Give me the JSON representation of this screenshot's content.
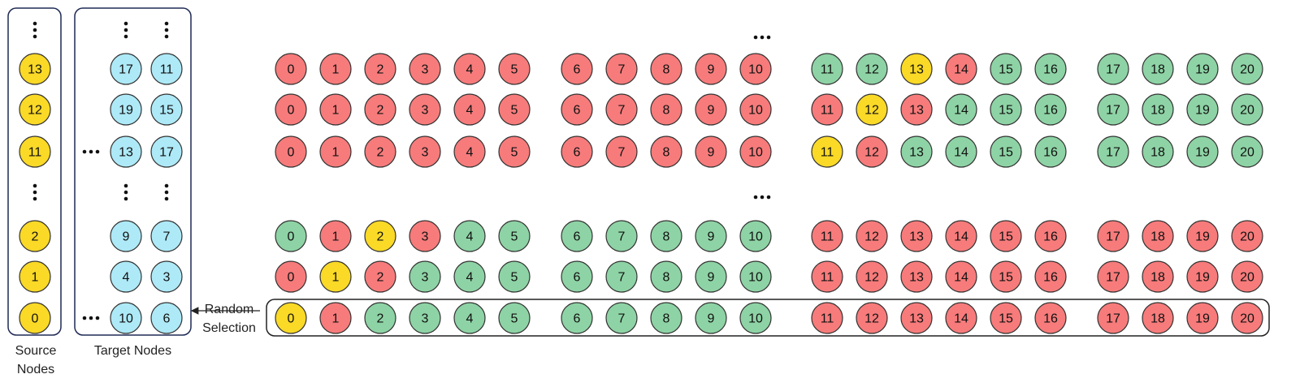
{
  "colors": {
    "red": "#f77b7b",
    "green": "#8ed3a5",
    "yellow": "#fad927",
    "cyan": "#aee9f7"
  },
  "source_nodes": {
    "caption": "Source Nodes",
    "nodes": [
      "13",
      "12",
      "11",
      "2",
      "1",
      "0"
    ],
    "color": "yellow"
  },
  "target_nodes": {
    "caption": "Target Nodes",
    "rows": [
      [
        "17",
        "11"
      ],
      [
        "19",
        "15"
      ],
      [
        "13",
        "17"
      ],
      [
        "9",
        "7"
      ],
      [
        "4",
        "3"
      ],
      [
        "10",
        "6"
      ]
    ],
    "color": "cyan"
  },
  "selection_label": "Random Selection",
  "grid": {
    "rows": [
      {
        "labels": [
          "0",
          "1",
          "2",
          "3",
          "4",
          "5",
          "6",
          "7",
          "8",
          "9",
          "10",
          "11",
          "12",
          "13",
          "14",
          "15",
          "16",
          "17",
          "18",
          "19",
          "20"
        ],
        "colors": [
          "red",
          "red",
          "red",
          "red",
          "red",
          "red",
          "red",
          "red",
          "red",
          "red",
          "red",
          "green",
          "green",
          "yellow",
          "red",
          "green",
          "green",
          "green",
          "green",
          "green",
          "green"
        ]
      },
      {
        "labels": [
          "0",
          "1",
          "2",
          "3",
          "4",
          "5",
          "6",
          "7",
          "8",
          "9",
          "10",
          "11",
          "12",
          "13",
          "14",
          "15",
          "16",
          "17",
          "18",
          "19",
          "20"
        ],
        "colors": [
          "red",
          "red",
          "red",
          "red",
          "red",
          "red",
          "red",
          "red",
          "red",
          "red",
          "red",
          "red",
          "yellow",
          "red",
          "green",
          "green",
          "green",
          "green",
          "green",
          "green",
          "green"
        ]
      },
      {
        "labels": [
          "0",
          "1",
          "2",
          "3",
          "4",
          "5",
          "6",
          "7",
          "8",
          "9",
          "10",
          "11",
          "12",
          "13",
          "14",
          "15",
          "16",
          "17",
          "18",
          "19",
          "20"
        ],
        "colors": [
          "red",
          "red",
          "red",
          "red",
          "red",
          "red",
          "red",
          "red",
          "red",
          "red",
          "red",
          "yellow",
          "red",
          "green",
          "green",
          "green",
          "green",
          "green",
          "green",
          "green",
          "green"
        ]
      },
      {
        "labels": [
          "0",
          "1",
          "2",
          "3",
          "4",
          "5",
          "6",
          "7",
          "8",
          "9",
          "10",
          "11",
          "12",
          "13",
          "14",
          "15",
          "16",
          "17",
          "18",
          "19",
          "20"
        ],
        "colors": [
          "green",
          "red",
          "yellow",
          "red",
          "green",
          "green",
          "green",
          "green",
          "green",
          "green",
          "green",
          "red",
          "red",
          "red",
          "red",
          "red",
          "red",
          "red",
          "red",
          "red",
          "red"
        ]
      },
      {
        "labels": [
          "0",
          "1",
          "2",
          "3",
          "4",
          "5",
          "6",
          "7",
          "8",
          "9",
          "10",
          "11",
          "12",
          "13",
          "14",
          "15",
          "16",
          "17",
          "18",
          "19",
          "20"
        ],
        "colors": [
          "red",
          "yellow",
          "red",
          "green",
          "green",
          "green",
          "green",
          "green",
          "green",
          "green",
          "green",
          "red",
          "red",
          "red",
          "red",
          "red",
          "red",
          "red",
          "red",
          "red",
          "red"
        ]
      },
      {
        "labels": [
          "0",
          "1",
          "2",
          "3",
          "4",
          "5",
          "6",
          "7",
          "8",
          "9",
          "10",
          "11",
          "12",
          "13",
          "14",
          "15",
          "16",
          "17",
          "18",
          "19",
          "20"
        ],
        "colors": [
          "yellow",
          "red",
          "green",
          "green",
          "green",
          "green",
          "green",
          "green",
          "green",
          "green",
          "green",
          "red",
          "red",
          "red",
          "red",
          "red",
          "red",
          "red",
          "red",
          "red",
          "red"
        ]
      }
    ]
  }
}
